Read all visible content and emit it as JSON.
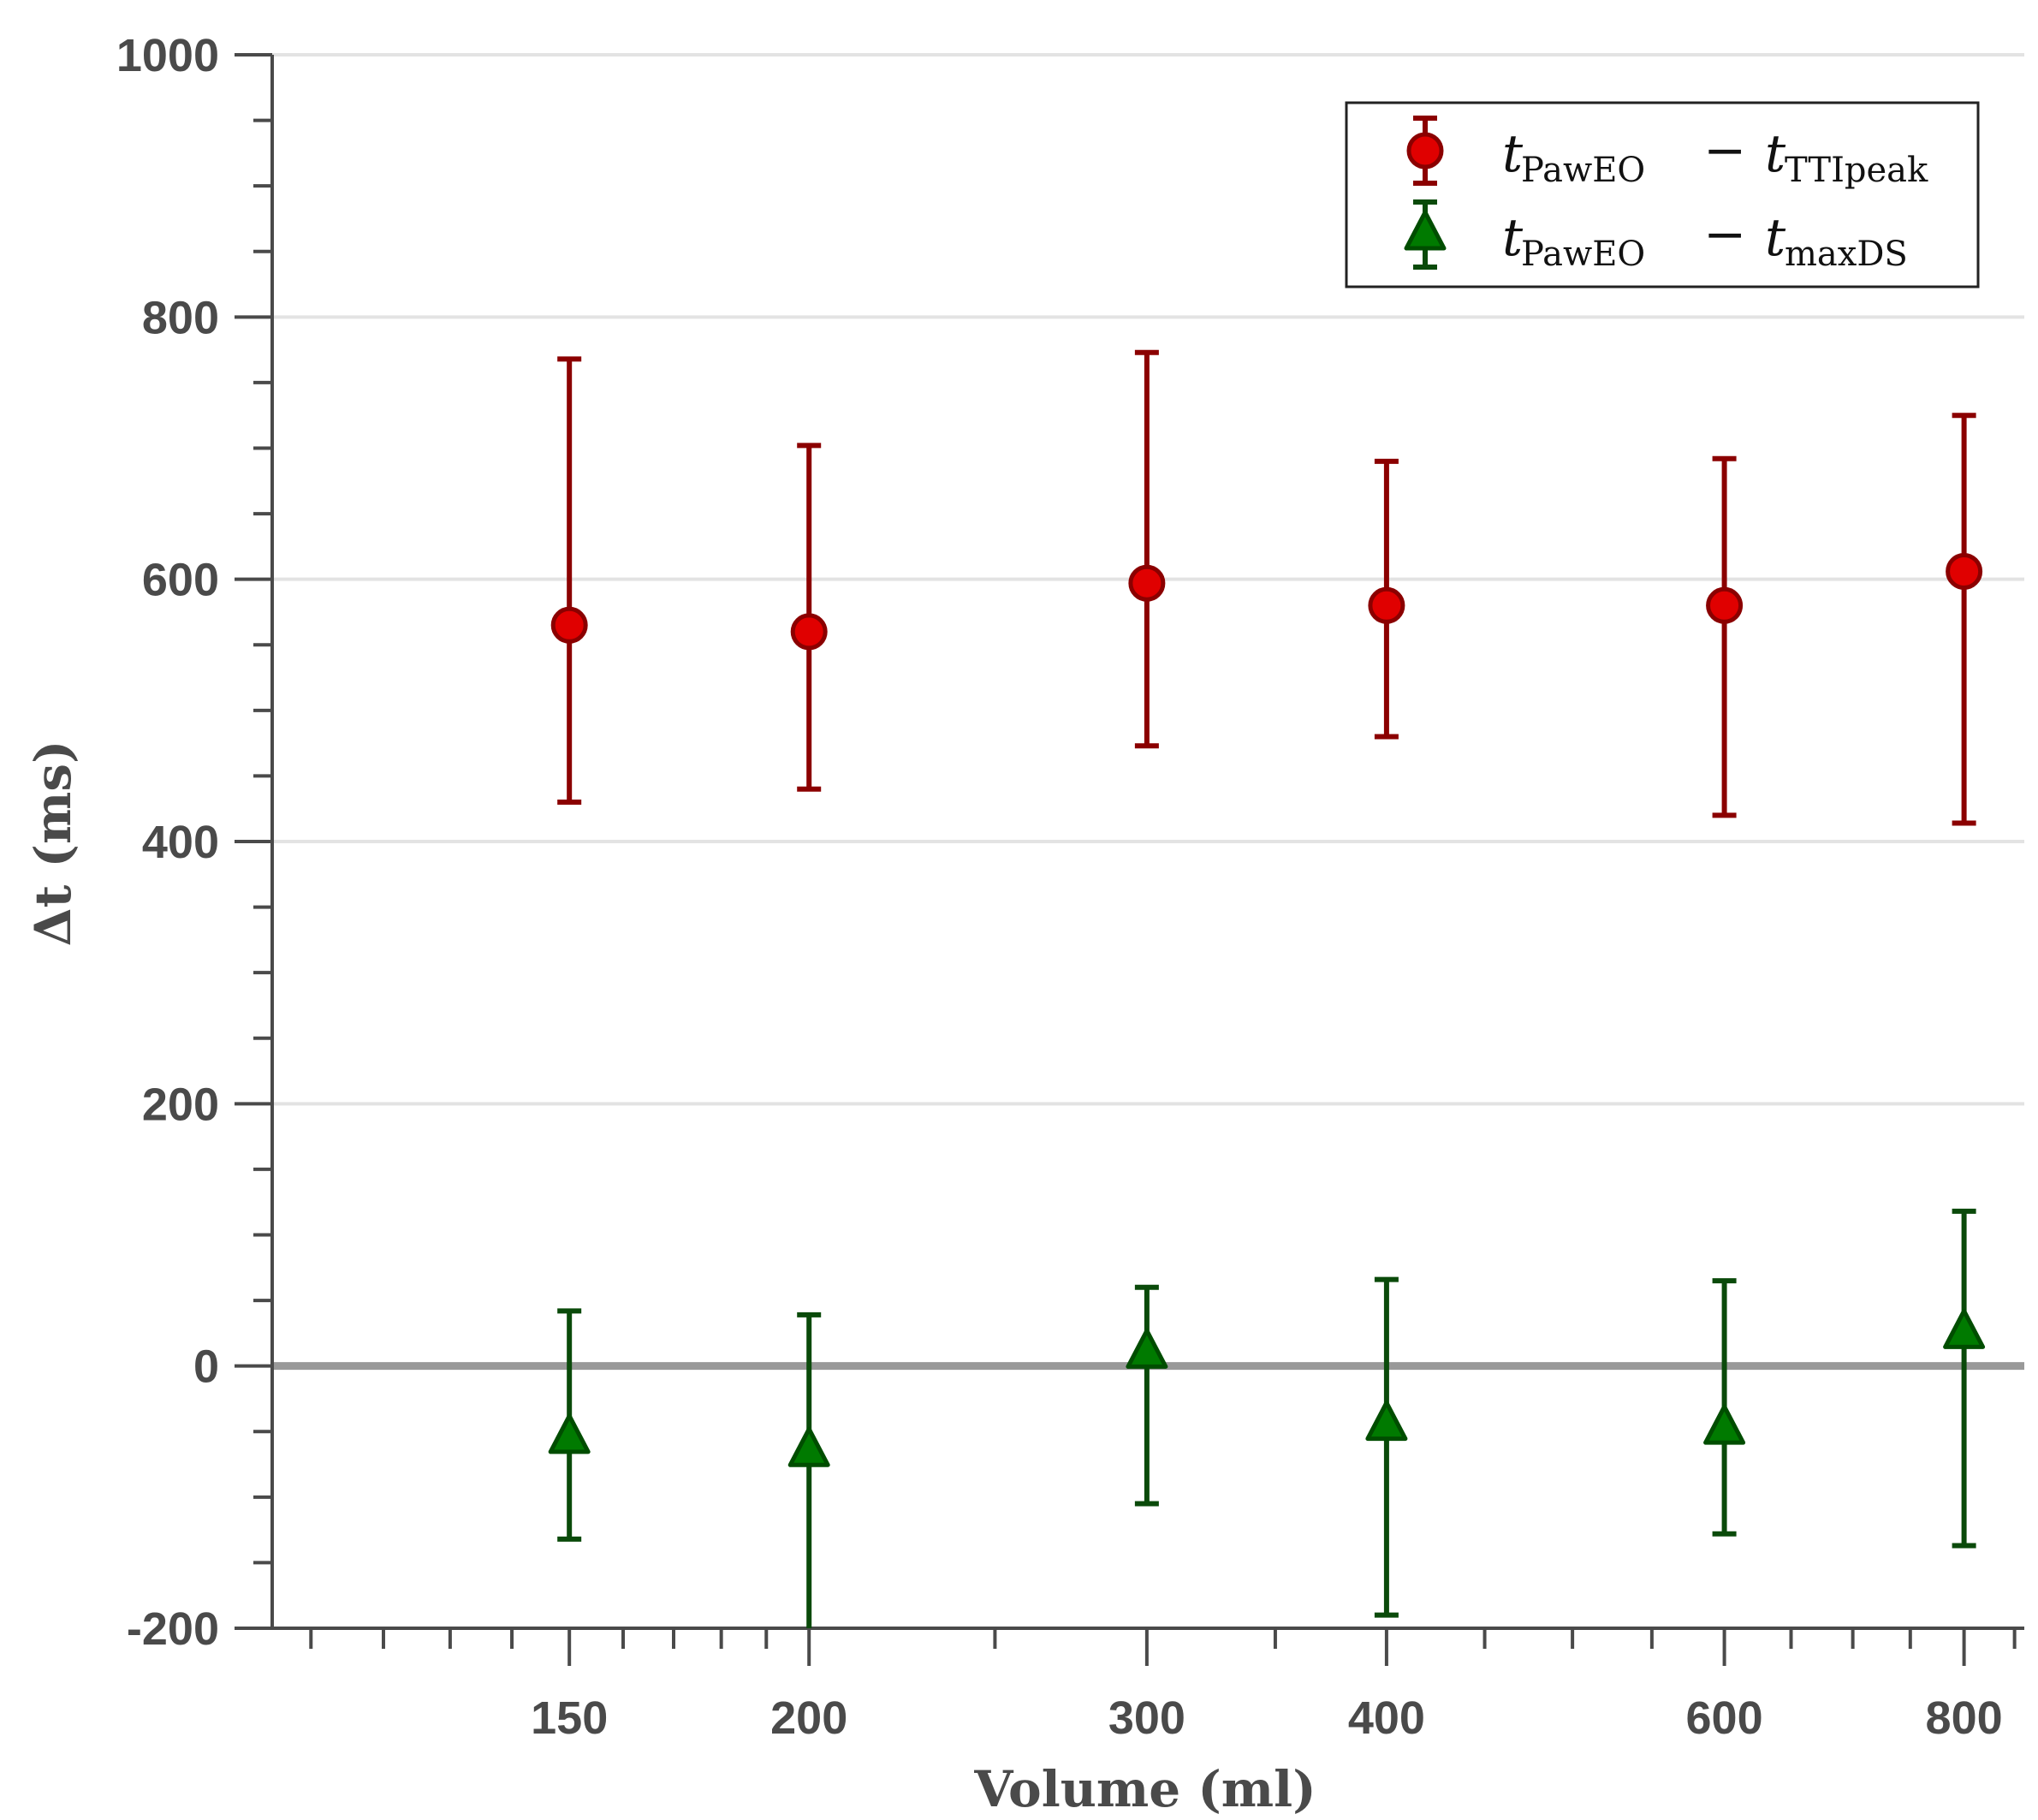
{
  "chart_data": {
    "type": "scatter",
    "title": "",
    "xlabel": "Volume (ml)",
    "ylabel": "Δt (ms)",
    "xscale": "log",
    "xlim": [
      105,
      860
    ],
    "ylim": [
      -200,
      1000
    ],
    "x_ticks": [
      150,
      200,
      300,
      400,
      600,
      800
    ],
    "x_tick_labels": [
      "150",
      "200",
      "300",
      "400",
      "600",
      "800"
    ],
    "y_ticks": [
      -200,
      0,
      200,
      400,
      600,
      800,
      1000
    ],
    "y_tick_labels": [
      "-200",
      "0",
      "200",
      "400",
      "600",
      "800",
      "1000"
    ],
    "grid": "horizontal",
    "reference_line": 0,
    "legend_position": "top-right",
    "series": [
      {
        "name": "tPawEO − tTTIpeak",
        "legend_main": "t",
        "legend_sub1": "PawEO",
        "legend_minus": "−",
        "legend_main2": "t",
        "legend_sub2": "TTIpeak",
        "marker": "circle",
        "color": "#e00000",
        "edge_color": "#8b0000",
        "bar_color": "#8b0000",
        "x": [
          150,
          200,
          300,
          400,
          600,
          800
        ],
        "y": [
          565,
          560,
          597,
          580,
          580,
          606
        ],
        "lower": [
          430,
          440,
          473,
          480,
          420,
          414
        ],
        "upper": [
          768,
          702,
          773,
          690,
          692,
          725
        ]
      },
      {
        "name": "tPawEO − tmaxDS",
        "legend_main": "t",
        "legend_sub1": "PawEO",
        "legend_minus": "−",
        "legend_main2": "t",
        "legend_sub2": "maxDS",
        "marker": "triangle",
        "color": "#007a00",
        "edge_color": "#004d00",
        "bar_color": "#0a4a0a",
        "x": [
          150,
          200,
          300,
          400,
          600,
          800
        ],
        "y": [
          -55,
          -65,
          10,
          -45,
          -48,
          25
        ],
        "lower": [
          -132,
          -200,
          -105,
          -190,
          -128,
          -137
        ],
        "upper": [
          42,
          39,
          60,
          66,
          65,
          118
        ]
      }
    ]
  },
  "colors": {
    "axis": "#4a4a4a",
    "grid": "#e3e3e3",
    "zero_line": "#999999"
  }
}
